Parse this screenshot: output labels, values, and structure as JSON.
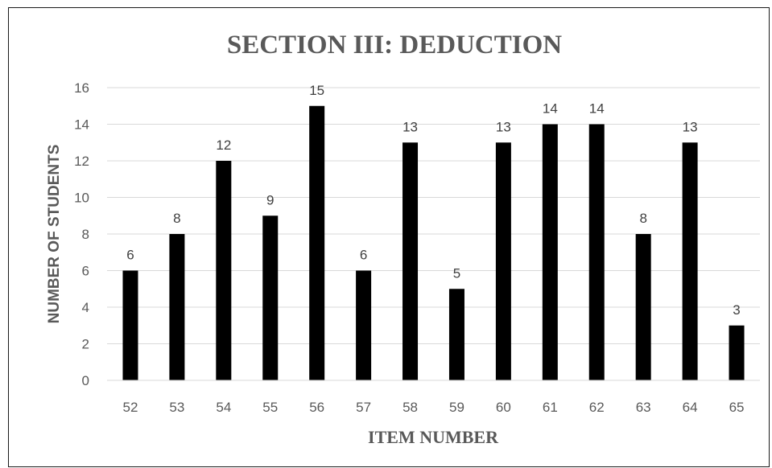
{
  "chart_data": {
    "type": "bar",
    "title": "SECTION III: DEDUCTION",
    "xlabel": "ITEM NUMBER",
    "ylabel": "NUMBER OF STUDENTS",
    "categories": [
      "52",
      "53",
      "54",
      "55",
      "56",
      "57",
      "58",
      "59",
      "60",
      "61",
      "62",
      "63",
      "64",
      "65"
    ],
    "values": [
      6,
      8,
      12,
      9,
      15,
      6,
      13,
      5,
      13,
      14,
      14,
      8,
      13,
      3
    ],
    "ylim": [
      0,
      16
    ],
    "yticks": [
      0,
      2,
      4,
      6,
      8,
      10,
      12,
      14,
      16
    ],
    "grid": true,
    "data_labels": true,
    "bar_color": "#000000",
    "grid_color": "#d9d9d9"
  }
}
